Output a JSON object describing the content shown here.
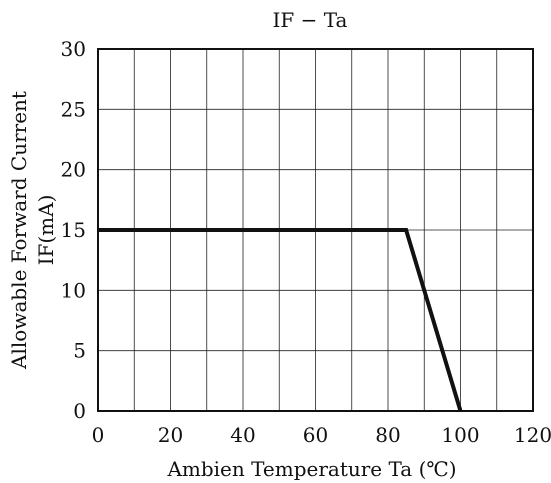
{
  "chart_data": {
    "type": "line",
    "title": "IF − Ta",
    "xlabel": "Ambien Temperature Ta (℃)",
    "ylabel": "Allowable Forward Current",
    "ylabel_line2": "IF(mA)",
    "xlim": [
      0,
      120
    ],
    "ylim": [
      0,
      30
    ],
    "x_ticks": [
      0,
      20,
      40,
      60,
      80,
      100,
      120
    ],
    "y_ticks": [
      0,
      5,
      10,
      15,
      20,
      25,
      30
    ],
    "grid": true,
    "grid_x_step": 10,
    "grid_y_step": 5,
    "series": [
      {
        "x": [
          0,
          85,
          100
        ],
        "y": [
          15,
          15,
          0
        ]
      }
    ]
  }
}
